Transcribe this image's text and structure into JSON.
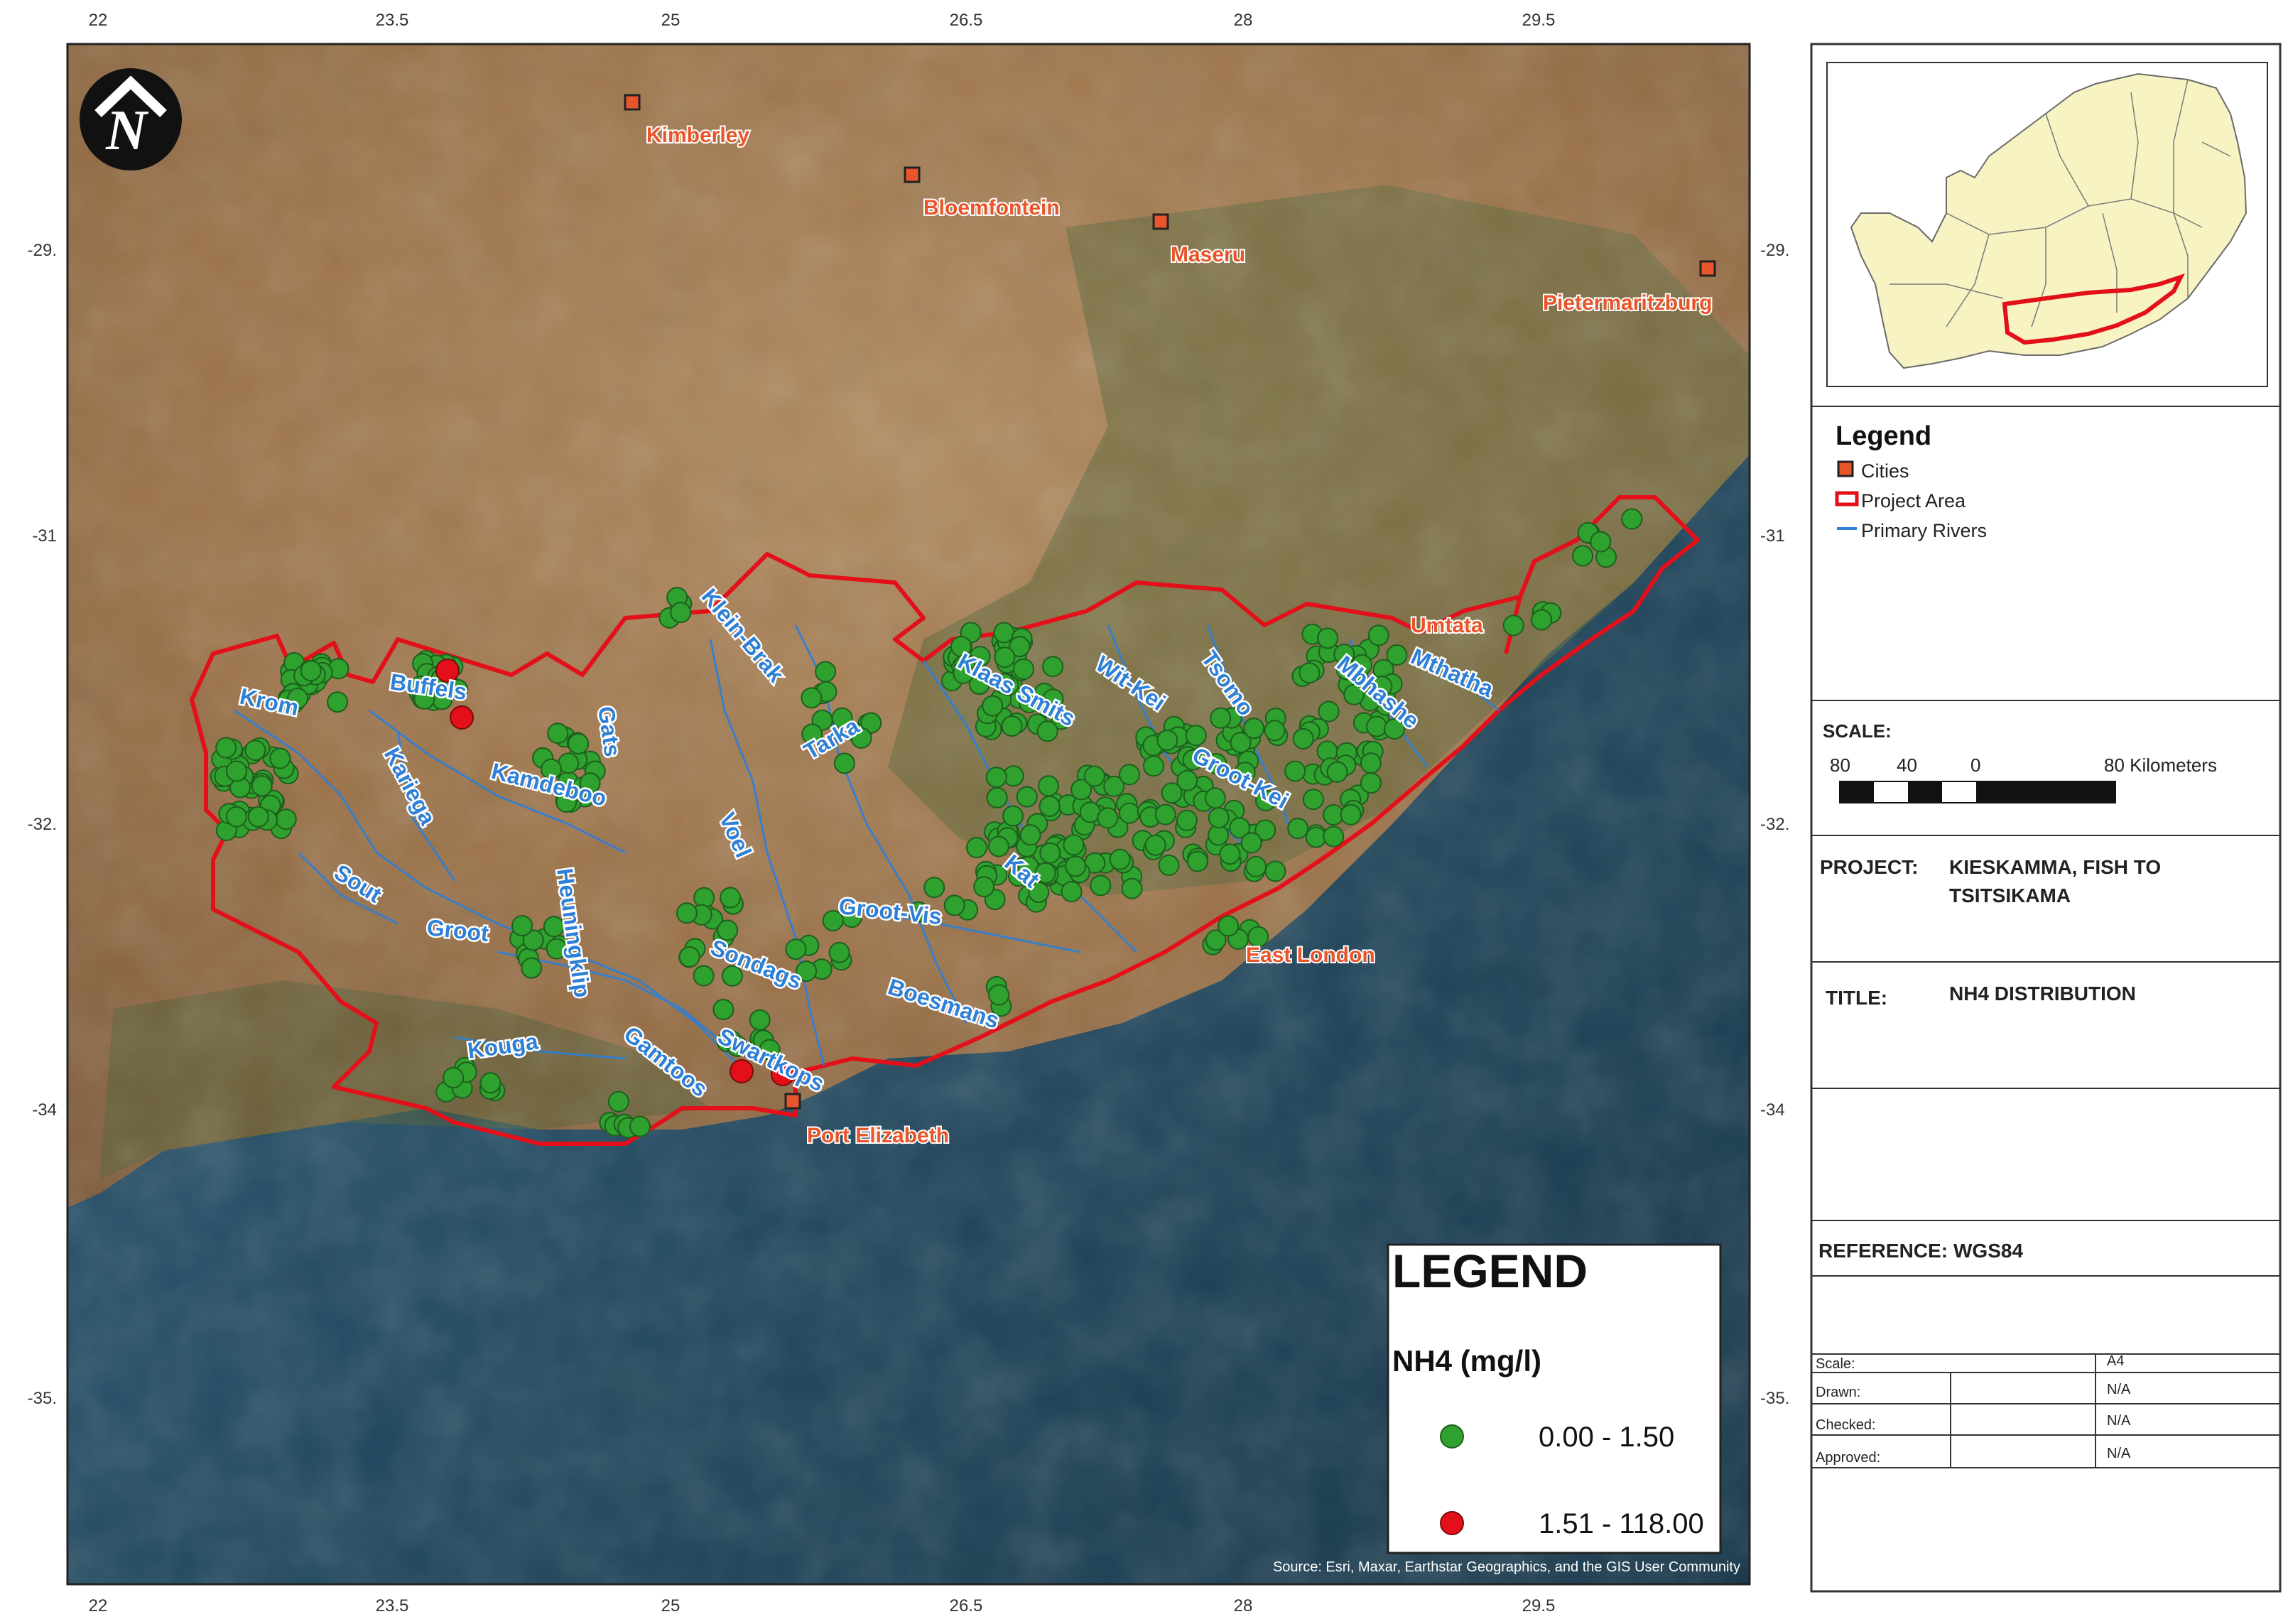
{
  "map": {
    "axis": {
      "lon_ticks": [
        "22",
        "23.5",
        "25",
        "26.5",
        "28",
        "29.5"
      ],
      "lat_ticks": [
        "-29.",
        "-31",
        "-32.",
        "-34",
        "-35."
      ]
    },
    "cities": [
      {
        "name": "Kimberley",
        "label_color": "#e8552a"
      },
      {
        "name": "Bloemfontein",
        "label_color": "#e8552a"
      },
      {
        "name": "Maseru",
        "label_color": "#e8552a"
      },
      {
        "name": "Pietermaritzburg",
        "label_color": "#e8552a"
      },
      {
        "name": "Umtata",
        "label_color": "#e8552a"
      },
      {
        "name": "East London",
        "label_color": "#e8552a"
      },
      {
        "name": "Port Elizabeth",
        "label_color": "#e8552a"
      }
    ],
    "rivers": [
      "Krom",
      "Buffels",
      "Kariega",
      "Kamdeboo",
      "Gats",
      "Klein-Brak",
      "Tarka",
      "Klaas Smits",
      "Wit-Kei",
      "Tsomo",
      "Mbhashe",
      "Mthatha",
      "Groot-Kei",
      "Sout",
      "Groot",
      "Heuningklip",
      "Voel",
      "Groot-Vis",
      "Kat",
      "Sondags",
      "Boesmans",
      "Kouga",
      "Gamtoos",
      "Swartkops"
    ],
    "north_arrow_icon": "north-arrow-icon",
    "attribution": "Source: Esri, Maxar, Earthstar Geographics, and the GIS User Community",
    "colors": {
      "project_area": "#e3101a",
      "low_class": "#2ea12e",
      "high_class": "#e3101a",
      "river": "#2e7fd6",
      "city_label": "#e8552a"
    }
  },
  "nh4_legend": {
    "title": "LEGEND",
    "subtitle": "NH4 (mg/l)",
    "classes": [
      {
        "label": "0.00 - 1.50",
        "color": "#2ea12e"
      },
      {
        "label": "1.51 - 118.00",
        "color": "#e3101a"
      }
    ]
  },
  "side_panel": {
    "legend": {
      "title": "Legend",
      "items": [
        {
          "label": "Cities",
          "icon": "city-marker-icon"
        },
        {
          "label": "Project Area",
          "icon": "project-area-icon"
        },
        {
          "label": "Primary Rivers",
          "icon": "river-line-icon"
        }
      ]
    },
    "scale": {
      "label": "SCALE:",
      "ticks": [
        "80",
        "40",
        "0",
        "80 Kilometers"
      ]
    },
    "project": {
      "label": "PROJECT:",
      "lines": [
        "KIESKAMMA, FISH TO",
        "TSITSIKAMA"
      ]
    },
    "title": {
      "label": "TITLE:",
      "value": "NH4 DISTRIBUTION"
    },
    "reference": {
      "label": "REFERENCE:",
      "value": "WGS84"
    },
    "table": [
      {
        "label": "Scale:",
        "value": "A4"
      },
      {
        "label": "Drawn:",
        "value": "N/A"
      },
      {
        "label": "Checked:",
        "value": "N/A"
      },
      {
        "label": "Approved:",
        "value": "N/A"
      }
    ]
  }
}
